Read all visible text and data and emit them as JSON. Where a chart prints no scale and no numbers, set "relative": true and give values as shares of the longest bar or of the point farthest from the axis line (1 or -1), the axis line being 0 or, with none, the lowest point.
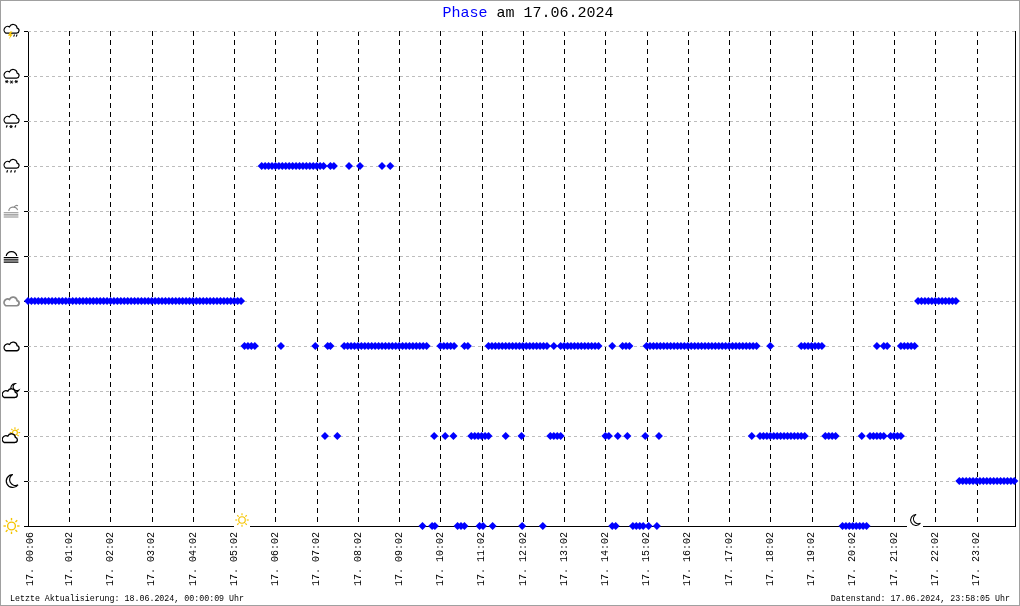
{
  "chart_data": {
    "type": "scatter",
    "title": "Phase am 17.06.2024",
    "annotations": [
      "Letzte Aktualisierung: 18.06.2024, 00:00:09 Uhr",
      "Datenstand: 17.06.2024, 23:58:05 Uhr"
    ],
    "marker": "diamond",
    "grid": true,
    "tick_labels": "x",
    "relative": true,
    "color": "#0000ff",
    "xlim": [
      "2024-06-17T00:02",
      "2024-06-17T23:58"
    ],
    "xticks": [
      {
        "value": "2024-06-17T00:06",
        "label": "17. 00:06"
      },
      {
        "value": "2024-06-17T01:02",
        "label": "17. 01:02"
      },
      {
        "value": "2024-06-17T02:02",
        "label": "17. 02:02"
      },
      {
        "value": "2024-06-17T03:02",
        "label": "17. 03:02"
      },
      {
        "value": "2024-06-17T04:02",
        "label": "17. 04:02"
      },
      {
        "value": "2024-06-17T05:02",
        "label": "17. 05:02"
      },
      {
        "value": "2024-06-17T06:02",
        "label": "17. 06:02"
      },
      {
        "value": "2024-06-17T07:02",
        "label": "17. 07:02"
      },
      {
        "value": "2024-06-17T08:02",
        "label": "17. 08:02"
      },
      {
        "value": "2024-06-17T09:02",
        "label": "17. 09:02"
      },
      {
        "value": "2024-06-17T10:02",
        "label": "17. 10:02"
      },
      {
        "value": "2024-06-17T11:02",
        "label": "17. 11:02"
      },
      {
        "value": "2024-06-17T12:02",
        "label": "17. 12:02"
      },
      {
        "value": "2024-06-17T13:02",
        "label": "17. 13:02"
      },
      {
        "value": "2024-06-17T14:02",
        "label": "17. 14:02"
      },
      {
        "value": "2024-06-17T15:02",
        "label": "17. 15:02"
      },
      {
        "value": "2024-06-17T16:02",
        "label": "17. 16:02"
      },
      {
        "value": "2024-06-17T17:02",
        "label": "17. 17:02"
      },
      {
        "value": "2024-06-17T18:02",
        "label": "17. 18:02"
      },
      {
        "value": "2024-06-17T19:02",
        "label": "17. 19:02"
      },
      {
        "value": "2024-06-17T20:02",
        "label": "17. 20:02"
      },
      {
        "value": "2024-06-17T21:02",
        "label": "17. 21:02"
      },
      {
        "value": "2024-06-17T22:02",
        "label": "17. 22:02"
      },
      {
        "value": "2024-06-17T23:02",
        "label": "17. 23:02"
      }
    ],
    "x": [
      "2024-06-17T00:02",
      "2024-06-17T00:07",
      "2024-06-17T00:12",
      "2024-06-17T00:17",
      "2024-06-17T00:22",
      "2024-06-17T00:27",
      "2024-06-17T00:32",
      "2024-06-17T00:37",
      "2024-06-17T00:42",
      "2024-06-17T00:47",
      "2024-06-17T00:52",
      "2024-06-17T00:57",
      "2024-06-17T01:02",
      "2024-06-17T01:07",
      "2024-06-17T01:12",
      "2024-06-17T01:17",
      "2024-06-17T01:22",
      "2024-06-17T01:27",
      "2024-06-17T01:32",
      "2024-06-17T01:37",
      "2024-06-17T01:42",
      "2024-06-17T01:47",
      "2024-06-17T01:52",
      "2024-06-17T01:57",
      "2024-06-17T02:02",
      "2024-06-17T02:07",
      "2024-06-17T02:12",
      "2024-06-17T02:17",
      "2024-06-17T02:22",
      "2024-06-17T02:27",
      "2024-06-17T02:32",
      "2024-06-17T02:37",
      "2024-06-17T02:42",
      "2024-06-17T02:47",
      "2024-06-17T02:52",
      "2024-06-17T02:57",
      "2024-06-17T03:02",
      "2024-06-17T03:07",
      "2024-06-17T03:12",
      "2024-06-17T03:17",
      "2024-06-17T03:22",
      "2024-06-17T03:27",
      "2024-06-17T03:32",
      "2024-06-17T03:37",
      "2024-06-17T03:42",
      "2024-06-17T03:47",
      "2024-06-17T03:52",
      "2024-06-17T03:57",
      "2024-06-17T04:02",
      "2024-06-17T04:07",
      "2024-06-17T04:12",
      "2024-06-17T04:17",
      "2024-06-17T04:22",
      "2024-06-17T04:27",
      "2024-06-17T04:32",
      "2024-06-17T04:37",
      "2024-06-17T04:42",
      "2024-06-17T04:47",
      "2024-06-17T04:52",
      "2024-06-17T04:57",
      "2024-06-17T05:02",
      "2024-06-17T05:07",
      "2024-06-17T05:12",
      "2024-06-17T21:37",
      "2024-06-17T21:42",
      "2024-06-17T21:47",
      "2024-06-17T21:52",
      "2024-06-17T21:57",
      "2024-06-17T22:02",
      "2024-06-17T22:07",
      "2024-06-17T22:12",
      "2024-06-17T22:17",
      "2024-06-17T22:22",
      "2024-06-17T22:27",
      "2024-06-17T22:32",
      "2024-06-17T05:17",
      "2024-06-17T05:22",
      "2024-06-17T05:27",
      "2024-06-17T05:32",
      "2024-06-17T06:10",
      "2024-06-17T07:00",
      "2024-06-17T07:18",
      "2024-06-17T07:22",
      "2024-06-17T07:42",
      "2024-06-17T07:47",
      "2024-06-17T07:52",
      "2024-06-17T07:57",
      "2024-06-17T08:02",
      "2024-06-17T08:07",
      "2024-06-17T08:12",
      "2024-06-17T08:17",
      "2024-06-17T08:22",
      "2024-06-17T08:27",
      "2024-06-17T08:32",
      "2024-06-17T08:37",
      "2024-06-17T08:42",
      "2024-06-17T08:47",
      "2024-06-17T08:52",
      "2024-06-17T08:57",
      "2024-06-17T09:02",
      "2024-06-17T09:07",
      "2024-06-17T09:12",
      "2024-06-17T09:17",
      "2024-06-17T09:22",
      "2024-06-17T09:27",
      "2024-06-17T09:32",
      "2024-06-17T09:37",
      "2024-06-17T09:42",
      "2024-06-17T10:02",
      "2024-06-17T10:07",
      "2024-06-17T10:12",
      "2024-06-17T10:17",
      "2024-06-17T10:22",
      "2024-06-17T10:37",
      "2024-06-17T10:42",
      "2024-06-17T11:12",
      "2024-06-17T11:17",
      "2024-06-17T11:22",
      "2024-06-17T11:27",
      "2024-06-17T11:32",
      "2024-06-17T11:37",
      "2024-06-17T11:42",
      "2024-06-17T11:47",
      "2024-06-17T11:52",
      "2024-06-17T11:57",
      "2024-06-17T12:02",
      "2024-06-17T12:07",
      "2024-06-17T12:12",
      "2024-06-17T12:17",
      "2024-06-17T12:22",
      "2024-06-17T12:27",
      "2024-06-17T12:32",
      "2024-06-17T12:37",
      "2024-06-17T12:47",
      "2024-06-17T12:57",
      "2024-06-17T13:02",
      "2024-06-17T13:07",
      "2024-06-17T13:12",
      "2024-06-17T13:17",
      "2024-06-17T13:22",
      "2024-06-17T13:27",
      "2024-06-17T13:32",
      "2024-06-17T13:37",
      "2024-06-17T13:42",
      "2024-06-17T13:47",
      "2024-06-17T13:52",
      "2024-06-17T14:12",
      "2024-06-17T14:27",
      "2024-06-17T14:32",
      "2024-06-17T14:37",
      "2024-06-17T15:02",
      "2024-06-17T15:07",
      "2024-06-17T15:12",
      "2024-06-17T15:17",
      "2024-06-17T15:22",
      "2024-06-17T15:27",
      "2024-06-17T15:32",
      "2024-06-17T15:37",
      "2024-06-17T15:42",
      "2024-06-17T15:47",
      "2024-06-17T15:52",
      "2024-06-17T15:57",
      "2024-06-17T16:02",
      "2024-06-17T16:07",
      "2024-06-17T16:12",
      "2024-06-17T16:17",
      "2024-06-17T16:22",
      "2024-06-17T16:27",
      "2024-06-17T16:32",
      "2024-06-17T16:37",
      "2024-06-17T16:42",
      "2024-06-17T16:47",
      "2024-06-17T16:52",
      "2024-06-17T16:57",
      "2024-06-17T17:02",
      "2024-06-17T17:07",
      "2024-06-17T17:12",
      "2024-06-17T17:17",
      "2024-06-17T17:22",
      "2024-06-17T17:27",
      "2024-06-17T17:32",
      "2024-06-17T17:37",
      "2024-06-17T17:42",
      "2024-06-17T18:02",
      "2024-06-17T18:47",
      "2024-06-17T18:52",
      "2024-06-17T18:57",
      "2024-06-17T19:02",
      "2024-06-17T19:07",
      "2024-06-17T19:12",
      "2024-06-17T19:17",
      "2024-06-17T20:37",
      "2024-06-17T20:47",
      "2024-06-17T20:52",
      "2024-06-17T21:12",
      "2024-06-17T21:17",
      "2024-06-17T21:22",
      "2024-06-17T21:27",
      "2024-06-17T21:32",
      "2024-06-17T05:42",
      "2024-06-17T05:47",
      "2024-06-17T05:52",
      "2024-06-17T05:57",
      "2024-06-17T06:02",
      "2024-06-17T06:07",
      "2024-06-17T06:12",
      "2024-06-17T06:17",
      "2024-06-17T06:22",
      "2024-06-17T06:27",
      "2024-06-17T06:32",
      "2024-06-17T06:37",
      "2024-06-17T06:42",
      "2024-06-17T06:47",
      "2024-06-17T06:52",
      "2024-06-17T06:57",
      "2024-06-17T07:02",
      "2024-06-17T07:07",
      "2024-06-17T07:12",
      "2024-06-17T07:22",
      "2024-06-17T07:27",
      "2024-06-17T07:49",
      "2024-06-17T08:05",
      "2024-06-17T08:37",
      "2024-06-17T08:49",
      "2024-06-17T07:14",
      "2024-06-17T07:32",
      "2024-06-17T09:53",
      "2024-06-17T10:09",
      "2024-06-17T10:21",
      "2024-06-17T10:47",
      "2024-06-17T10:52",
      "2024-06-17T10:57",
      "2024-06-17T11:02",
      "2024-06-17T11:07",
      "2024-06-17T11:12",
      "2024-06-17T11:37",
      "2024-06-17T12:00",
      "2024-06-17T12:42",
      "2024-06-17T12:47",
      "2024-06-17T12:52",
      "2024-06-17T12:57",
      "2024-06-17T14:02",
      "2024-06-17T14:07",
      "2024-06-17T14:20",
      "2024-06-17T14:34",
      "2024-06-17T15:00",
      "2024-06-17T15:20",
      "2024-06-17T17:35",
      "2024-06-17T17:47",
      "2024-06-17T17:52",
      "2024-06-17T17:57",
      "2024-06-17T18:02",
      "2024-06-17T18:07",
      "2024-06-17T18:12",
      "2024-06-17T18:17",
      "2024-06-17T18:22",
      "2024-06-17T18:27",
      "2024-06-17T18:32",
      "2024-06-17T18:37",
      "2024-06-17T18:42",
      "2024-06-17T18:47",
      "2024-06-17T18:52",
      "2024-06-17T19:22",
      "2024-06-17T19:27",
      "2024-06-17T19:32",
      "2024-06-17T19:37",
      "2024-06-17T20:15",
      "2024-06-17T20:27",
      "2024-06-17T20:32",
      "2024-06-17T20:37",
      "2024-06-17T20:42",
      "2024-06-17T20:47",
      "2024-06-17T20:57",
      "2024-06-17T21:02",
      "2024-06-17T21:07",
      "2024-06-17T21:12",
      "2024-06-17T09:36",
      "2024-06-17T09:50",
      "2024-06-17T09:54",
      "2024-06-17T10:27",
      "2024-06-17T10:32",
      "2024-06-17T10:37",
      "2024-06-17T10:59",
      "2024-06-17T11:04",
      "2024-06-17T11:18",
      "2024-06-17T12:01",
      "2024-06-17T12:31",
      "2024-06-17T14:12",
      "2024-06-17T14:17",
      "2024-06-17T14:42",
      "2024-06-17T14:47",
      "2024-06-17T14:52",
      "2024-06-17T14:57",
      "2024-06-17T15:05",
      "2024-06-17T15:17",
      "2024-06-17T19:47",
      "2024-06-17T19:52",
      "2024-06-17T19:57",
      "2024-06-17T20:02",
      "2024-06-17T20:07",
      "2024-06-17T20:12",
      "2024-06-17T20:17",
      "2024-06-17T20:22",
      "2024-06-17T22:37",
      "2024-06-17T22:42",
      "2024-06-17T22:47",
      "2024-06-17T22:52",
      "2024-06-17T22:57",
      "2024-06-17T23:02",
      "2024-06-17T23:07",
      "2024-06-17T23:12",
      "2024-06-17T23:17",
      "2024-06-17T23:22",
      "2024-06-17T23:27",
      "2024-06-17T23:32",
      "2024-06-17T23:37",
      "2024-06-17T23:42",
      "2024-06-17T23:47",
      "2024-06-17T23:52",
      "2024-06-17T23:57"
    ],
    "values": [
      0.625,
      0.625,
      0.625,
      0.625,
      0.625,
      0.625,
      0.625,
      0.625,
      0.625,
      0.625,
      0.625,
      0.625,
      0.625,
      0.625,
      0.625,
      0.625,
      0.625,
      0.625,
      0.625,
      0.625,
      0.625,
      0.625,
      0.625,
      0.625,
      0.625,
      0.625,
      0.625,
      0.625,
      0.625,
      0.625,
      0.625,
      0.625,
      0.625,
      0.625,
      0.625,
      0.625,
      0.625,
      0.625,
      0.625,
      0.625,
      0.625,
      0.625,
      0.625,
      0.625,
      0.625,
      0.625,
      0.625,
      0.625,
      0.625,
      0.625,
      0.625,
      0.625,
      0.625,
      0.625,
      0.625,
      0.625,
      0.625,
      0.625,
      0.625,
      0.625,
      0.625,
      0.625,
      0.625,
      0.625,
      0.625,
      0.625,
      0.625,
      0.625,
      0.625,
      0.625,
      0.625,
      0.625,
      0.625,
      0.625,
      0.625,
      0.5,
      0.5,
      0.5,
      0.5,
      0.5,
      0.5,
      0.5,
      0.5,
      0.5,
      0.5,
      0.5,
      0.5,
      0.5,
      0.5,
      0.5,
      0.5,
      0.5,
      0.5,
      0.5,
      0.5,
      0.5,
      0.5,
      0.5,
      0.5,
      0.5,
      0.5,
      0.5,
      0.5,
      0.5,
      0.5,
      0.5,
      0.5,
      0.5,
      0.5,
      0.5,
      0.5,
      0.5,
      0.5,
      0.5,
      0.5,
      0.5,
      0.5,
      0.5,
      0.5,
      0.5,
      0.5,
      0.5,
      0.5,
      0.5,
      0.5,
      0.5,
      0.5,
      0.5,
      0.5,
      0.5,
      0.5,
      0.5,
      0.5,
      0.5,
      0.5,
      0.5,
      0.5,
      0.5,
      0.5,
      0.5,
      0.5,
      0.5,
      0.5,
      0.5,
      0.5,
      0.5,
      0.5,
      0.5,
      0.5,
      0.5,
      0.5,
      0.5,
      0.5,
      0.5,
      0.5,
      0.5,
      0.5,
      0.5,
      0.5,
      0.5,
      0.5,
      0.5,
      0.5,
      0.5,
      0.5,
      0.5,
      0.5,
      0.5,
      0.5,
      0.5,
      0.5,
      0.5,
      0.5,
      0.5,
      0.5,
      0.5,
      0.5,
      0.5,
      0.5,
      0.5,
      0.5,
      0.5,
      0.5,
      0.5,
      0.5,
      0.5,
      0.5,
      0.5,
      0.5,
      0.5,
      0.5,
      0.5,
      0.5,
      0.5,
      0.5,
      0.5,
      0.5,
      0.5,
      0.5,
      1,
      1,
      1,
      1,
      1,
      1,
      1,
      1,
      1,
      1,
      1,
      1,
      1,
      1,
      1,
      1,
      1,
      1,
      1,
      1,
      1,
      1,
      1,
      1,
      1,
      0.25,
      0.25,
      0.25,
      0.25,
      0.25,
      0.25,
      0.25,
      0.25,
      0.25,
      0.25,
      0.25,
      0.25,
      0.25,
      0.25,
      0.25,
      0.25,
      0.25,
      0.25,
      0.25,
      0.25,
      0.25,
      0.25,
      0.25,
      0.25,
      0.25,
      0.25,
      0.25,
      0.25,
      0.25,
      0.25,
      0.25,
      0.25,
      0.25,
      0.25,
      0.25,
      0.25,
      0.25,
      0.25,
      0.25,
      0.25,
      0.25,
      0.25,
      0.25,
      0.25,
      0.25,
      0.25,
      0.25,
      0.25,
      0.25,
      0.25,
      0.25,
      0.25,
      0,
      0,
      0,
      0,
      0,
      0,
      0,
      0,
      0,
      0,
      0,
      0,
      0,
      0,
      0,
      0,
      0,
      0,
      0,
      0,
      0,
      0,
      0,
      0,
      0,
      0,
      0,
      0.125,
      0.125,
      0.125,
      0.125,
      0.125,
      0.125,
      0.125,
      0.125,
      0.125,
      0.125,
      0.125,
      0.125,
      0.125,
      0.125,
      0.125,
      0.125,
      0.125
    ]
  }
}
